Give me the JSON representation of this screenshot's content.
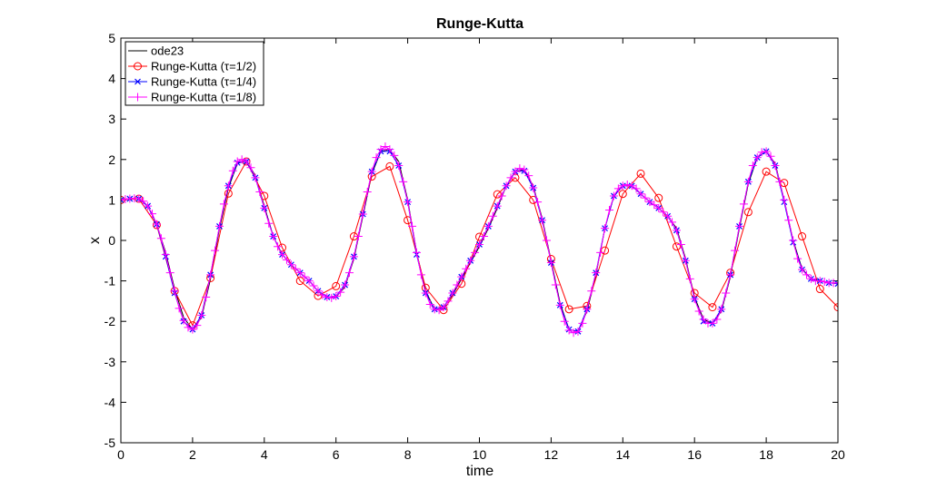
{
  "chart_data": {
    "type": "line",
    "title": "Runge-Kutta",
    "xlabel": "time",
    "ylabel": "x",
    "xlim": [
      0,
      20
    ],
    "ylim": [
      -5,
      5
    ],
    "xticks": [
      0,
      2,
      4,
      6,
      8,
      10,
      12,
      14,
      16,
      18,
      20
    ],
    "yticks": [
      -5,
      -4,
      -3,
      -2,
      -1,
      0,
      1,
      2,
      3,
      4,
      5
    ],
    "grid": false,
    "legend_position": "top-left",
    "series": [
      {
        "name": "ode23",
        "color": "#000000",
        "marker": "none",
        "x": [
          0,
          0.25,
          0.5,
          0.75,
          1,
          1.25,
          1.5,
          1.75,
          2,
          2.25,
          2.5,
          2.75,
          3,
          3.25,
          3.5,
          3.75,
          4,
          4.25,
          4.5,
          4.75,
          5,
          5.25,
          5.5,
          5.75,
          6,
          6.25,
          6.5,
          6.75,
          7,
          7.25,
          7.5,
          7.75,
          8,
          8.25,
          8.5,
          8.75,
          9,
          9.25,
          9.5,
          9.75,
          10,
          10.25,
          10.5,
          10.75,
          11,
          11.25,
          11.5,
          11.75,
          12,
          12.25,
          12.5,
          12.75,
          13,
          13.25,
          13.5,
          13.75,
          14,
          14.25,
          14.5,
          14.75,
          15,
          15.25,
          15.5,
          15.75,
          16,
          16.25,
          16.5,
          16.75,
          17,
          17.25,
          17.5,
          17.75,
          18,
          18.25,
          18.5,
          18.75,
          19,
          19.25,
          19.5,
          19.75,
          20
        ],
        "y": [
          1.0,
          1.03,
          1.03,
          0.85,
          0.4,
          -0.3,
          -1.2,
          -1.9,
          -2.2,
          -1.9,
          -0.95,
          0.3,
          1.3,
          1.9,
          1.98,
          1.6,
          0.85,
          0.1,
          -0.35,
          -0.6,
          -0.8,
          -1.0,
          -1.25,
          -1.4,
          -1.4,
          -1.15,
          -0.45,
          0.6,
          1.65,
          2.2,
          2.25,
          1.95,
          1.0,
          -0.3,
          -1.25,
          -1.7,
          -1.65,
          -1.35,
          -0.95,
          -0.55,
          -0.15,
          0.3,
          0.8,
          1.35,
          1.7,
          1.75,
          1.35,
          0.55,
          -0.5,
          -1.55,
          -2.2,
          -2.25,
          -1.75,
          -0.85,
          0.3,
          1.1,
          1.35,
          1.35,
          1.15,
          0.95,
          0.8,
          0.6,
          0.3,
          -0.45,
          -1.4,
          -1.95,
          -2.05,
          -1.75,
          -0.9,
          0.3,
          1.4,
          2.05,
          2.2,
          1.9,
          1.0,
          0.0,
          -0.7,
          -0.95,
          -1.0,
          -1.05,
          -1.05
        ]
      },
      {
        "name": "Runge-Kutta  (τ=1/2)",
        "color": "#ff0000",
        "marker": "circle",
        "x": [
          0,
          0.5,
          1,
          1.5,
          2,
          2.5,
          3,
          3.5,
          4,
          4.5,
          5,
          5.5,
          6,
          6.5,
          7,
          7.5,
          8,
          8.5,
          9,
          9.5,
          10,
          10.5,
          11,
          11.5,
          12,
          12.5,
          13,
          13.5,
          14,
          14.5,
          15,
          15.5,
          16,
          16.5,
          17,
          17.5,
          18,
          18.5,
          19,
          19.5,
          20
        ],
        "y": [
          1.0,
          1.03,
          0.38,
          -1.25,
          -2.1,
          -0.93,
          1.16,
          1.95,
          1.1,
          -0.18,
          -1.0,
          -1.37,
          -1.13,
          0.1,
          1.58,
          1.83,
          0.5,
          -1.17,
          -1.72,
          -1.07,
          0.09,
          1.14,
          1.55,
          1.0,
          -0.46,
          -1.7,
          -1.62,
          -0.25,
          1.15,
          1.65,
          1.05,
          -0.15,
          -1.3,
          -1.65,
          -0.8,
          0.7,
          1.7,
          1.42,
          0.1,
          -1.2,
          -1.65
        ]
      },
      {
        "name": "Runge-Kutta  (τ=1/4)",
        "color": "#0000ff",
        "marker": "x",
        "x": [
          0,
          0.25,
          0.5,
          0.75,
          1,
          1.25,
          1.5,
          1.75,
          2,
          2.25,
          2.5,
          2.75,
          3,
          3.25,
          3.5,
          3.75,
          4,
          4.25,
          4.5,
          4.75,
          5,
          5.25,
          5.5,
          5.75,
          6,
          6.25,
          6.5,
          6.75,
          7,
          7.25,
          7.5,
          7.75,
          8,
          8.25,
          8.5,
          8.75,
          9,
          9.25,
          9.5,
          9.75,
          10,
          10.25,
          10.5,
          10.75,
          11,
          11.25,
          11.5,
          11.75,
          12,
          12.25,
          12.5,
          12.75,
          13,
          13.25,
          13.5,
          13.75,
          14,
          14.25,
          14.5,
          14.75,
          15,
          15.25,
          15.5,
          15.75,
          16,
          16.25,
          16.5,
          16.75,
          17,
          17.25,
          17.5,
          17.75,
          18,
          18.25,
          18.5,
          18.75,
          19,
          19.25,
          19.5,
          19.75,
          20
        ],
        "y": [
          1.0,
          1.03,
          1.03,
          0.85,
          0.4,
          -0.4,
          -1.3,
          -2.0,
          -2.2,
          -1.85,
          -0.85,
          0.35,
          1.35,
          1.92,
          1.95,
          1.55,
          0.8,
          0.1,
          -0.35,
          -0.6,
          -0.8,
          -1.0,
          -1.25,
          -1.4,
          -1.38,
          -1.1,
          -0.4,
          0.65,
          1.7,
          2.2,
          2.2,
          1.85,
          0.95,
          -0.35,
          -1.3,
          -1.7,
          -1.65,
          -1.3,
          -0.9,
          -0.5,
          -0.1,
          0.35,
          0.85,
          1.35,
          1.7,
          1.72,
          1.3,
          0.5,
          -0.55,
          -1.6,
          -2.2,
          -2.25,
          -1.7,
          -0.8,
          0.3,
          1.1,
          1.35,
          1.35,
          1.15,
          0.95,
          0.8,
          0.6,
          0.25,
          -0.5,
          -1.45,
          -2.0,
          -2.05,
          -1.7,
          -0.85,
          0.35,
          1.45,
          2.05,
          2.2,
          1.85,
          0.95,
          -0.05,
          -0.72,
          -0.95,
          -1.0,
          -1.05,
          -1.07
        ]
      },
      {
        "name": "Runge-Kutta  (τ=1/8)",
        "color": "#ff00ff",
        "marker": "plus",
        "x": [
          0,
          0.125,
          0.25,
          0.375,
          0.5,
          0.625,
          0.75,
          0.875,
          1,
          1.125,
          1.25,
          1.375,
          1.5,
          1.625,
          1.75,
          1.875,
          2,
          2.125,
          2.25,
          2.375,
          2.5,
          2.625,
          2.75,
          2.875,
          3,
          3.125,
          3.25,
          3.375,
          3.5,
          3.625,
          3.75,
          3.875,
          4,
          4.125,
          4.25,
          4.375,
          4.5,
          4.625,
          4.75,
          4.875,
          5,
          5.125,
          5.25,
          5.375,
          5.5,
          5.625,
          5.75,
          5.875,
          6,
          6.125,
          6.25,
          6.375,
          6.5,
          6.625,
          6.75,
          6.875,
          7,
          7.125,
          7.25,
          7.375,
          7.5,
          7.625,
          7.75,
          7.875,
          8,
          8.125,
          8.25,
          8.375,
          8.5,
          8.625,
          8.75,
          8.875,
          9,
          9.125,
          9.25,
          9.375,
          9.5,
          9.625,
          9.75,
          9.875,
          10,
          10.125,
          10.25,
          10.375,
          10.5,
          10.625,
          10.75,
          10.875,
          11,
          11.125,
          11.25,
          11.375,
          11.5,
          11.625,
          11.75,
          11.875,
          12,
          12.125,
          12.25,
          12.375,
          12.5,
          12.625,
          12.75,
          12.875,
          13,
          13.125,
          13.25,
          13.375,
          13.5,
          13.625,
          13.75,
          13.875,
          14,
          14.125,
          14.25,
          14.375,
          14.5,
          14.625,
          14.75,
          14.875,
          15,
          15.125,
          15.25,
          15.375,
          15.5,
          15.625,
          15.75,
          15.875,
          16,
          16.125,
          16.25,
          16.375,
          16.5,
          16.625,
          16.75,
          16.875,
          17,
          17.125,
          17.25,
          17.375,
          17.5,
          17.625,
          17.75,
          17.875,
          18,
          18.125,
          18.25,
          18.375,
          18.5,
          18.625,
          18.75,
          18.875,
          19,
          19.125,
          19.25,
          19.375,
          19.5,
          19.625,
          19.75,
          19.875,
          20
        ],
        "y": [
          1.0,
          1.02,
          1.03,
          1.04,
          1.03,
          0.97,
          0.85,
          0.66,
          0.4,
          0.05,
          -0.35,
          -0.8,
          -1.25,
          -1.68,
          -1.98,
          -2.15,
          -2.2,
          -2.1,
          -1.85,
          -1.4,
          -0.85,
          -0.25,
          0.35,
          0.9,
          1.35,
          1.72,
          1.95,
          2.0,
          1.95,
          1.8,
          1.55,
          1.2,
          0.8,
          0.42,
          0.1,
          -0.15,
          -0.35,
          -0.48,
          -0.6,
          -0.7,
          -0.8,
          -0.9,
          -1.0,
          -1.12,
          -1.25,
          -1.35,
          -1.4,
          -1.42,
          -1.38,
          -1.28,
          -1.1,
          -0.8,
          -0.4,
          0.1,
          0.65,
          1.2,
          1.7,
          2.05,
          2.25,
          2.32,
          2.25,
          2.1,
          1.85,
          1.45,
          0.95,
          0.35,
          -0.3,
          -0.85,
          -1.3,
          -1.58,
          -1.7,
          -1.72,
          -1.65,
          -1.5,
          -1.3,
          -1.1,
          -0.9,
          -0.7,
          -0.5,
          -0.3,
          -0.1,
          0.1,
          0.35,
          0.6,
          0.85,
          1.1,
          1.35,
          1.55,
          1.7,
          1.78,
          1.75,
          1.6,
          1.3,
          0.95,
          0.5,
          0.0,
          -0.55,
          -1.1,
          -1.6,
          -2.0,
          -2.22,
          -2.28,
          -2.25,
          -2.05,
          -1.7,
          -1.25,
          -0.8,
          -0.3,
          0.3,
          0.75,
          1.1,
          1.28,
          1.35,
          1.38,
          1.35,
          1.28,
          1.15,
          1.05,
          0.95,
          0.88,
          0.8,
          0.7,
          0.6,
          0.45,
          0.25,
          -0.1,
          -0.5,
          -0.95,
          -1.45,
          -1.75,
          -1.95,
          -2.05,
          -2.05,
          -1.95,
          -1.7,
          -1.3,
          -0.85,
          -0.25,
          0.35,
          0.9,
          1.45,
          1.85,
          2.05,
          2.18,
          2.2,
          2.08,
          1.85,
          1.45,
          1.0,
          0.5,
          0.0,
          -0.45,
          -0.72,
          -0.85,
          -0.95,
          -1.0,
          -1.0,
          -1.02,
          -1.05,
          -1.05,
          -1.05
        ]
      }
    ]
  }
}
